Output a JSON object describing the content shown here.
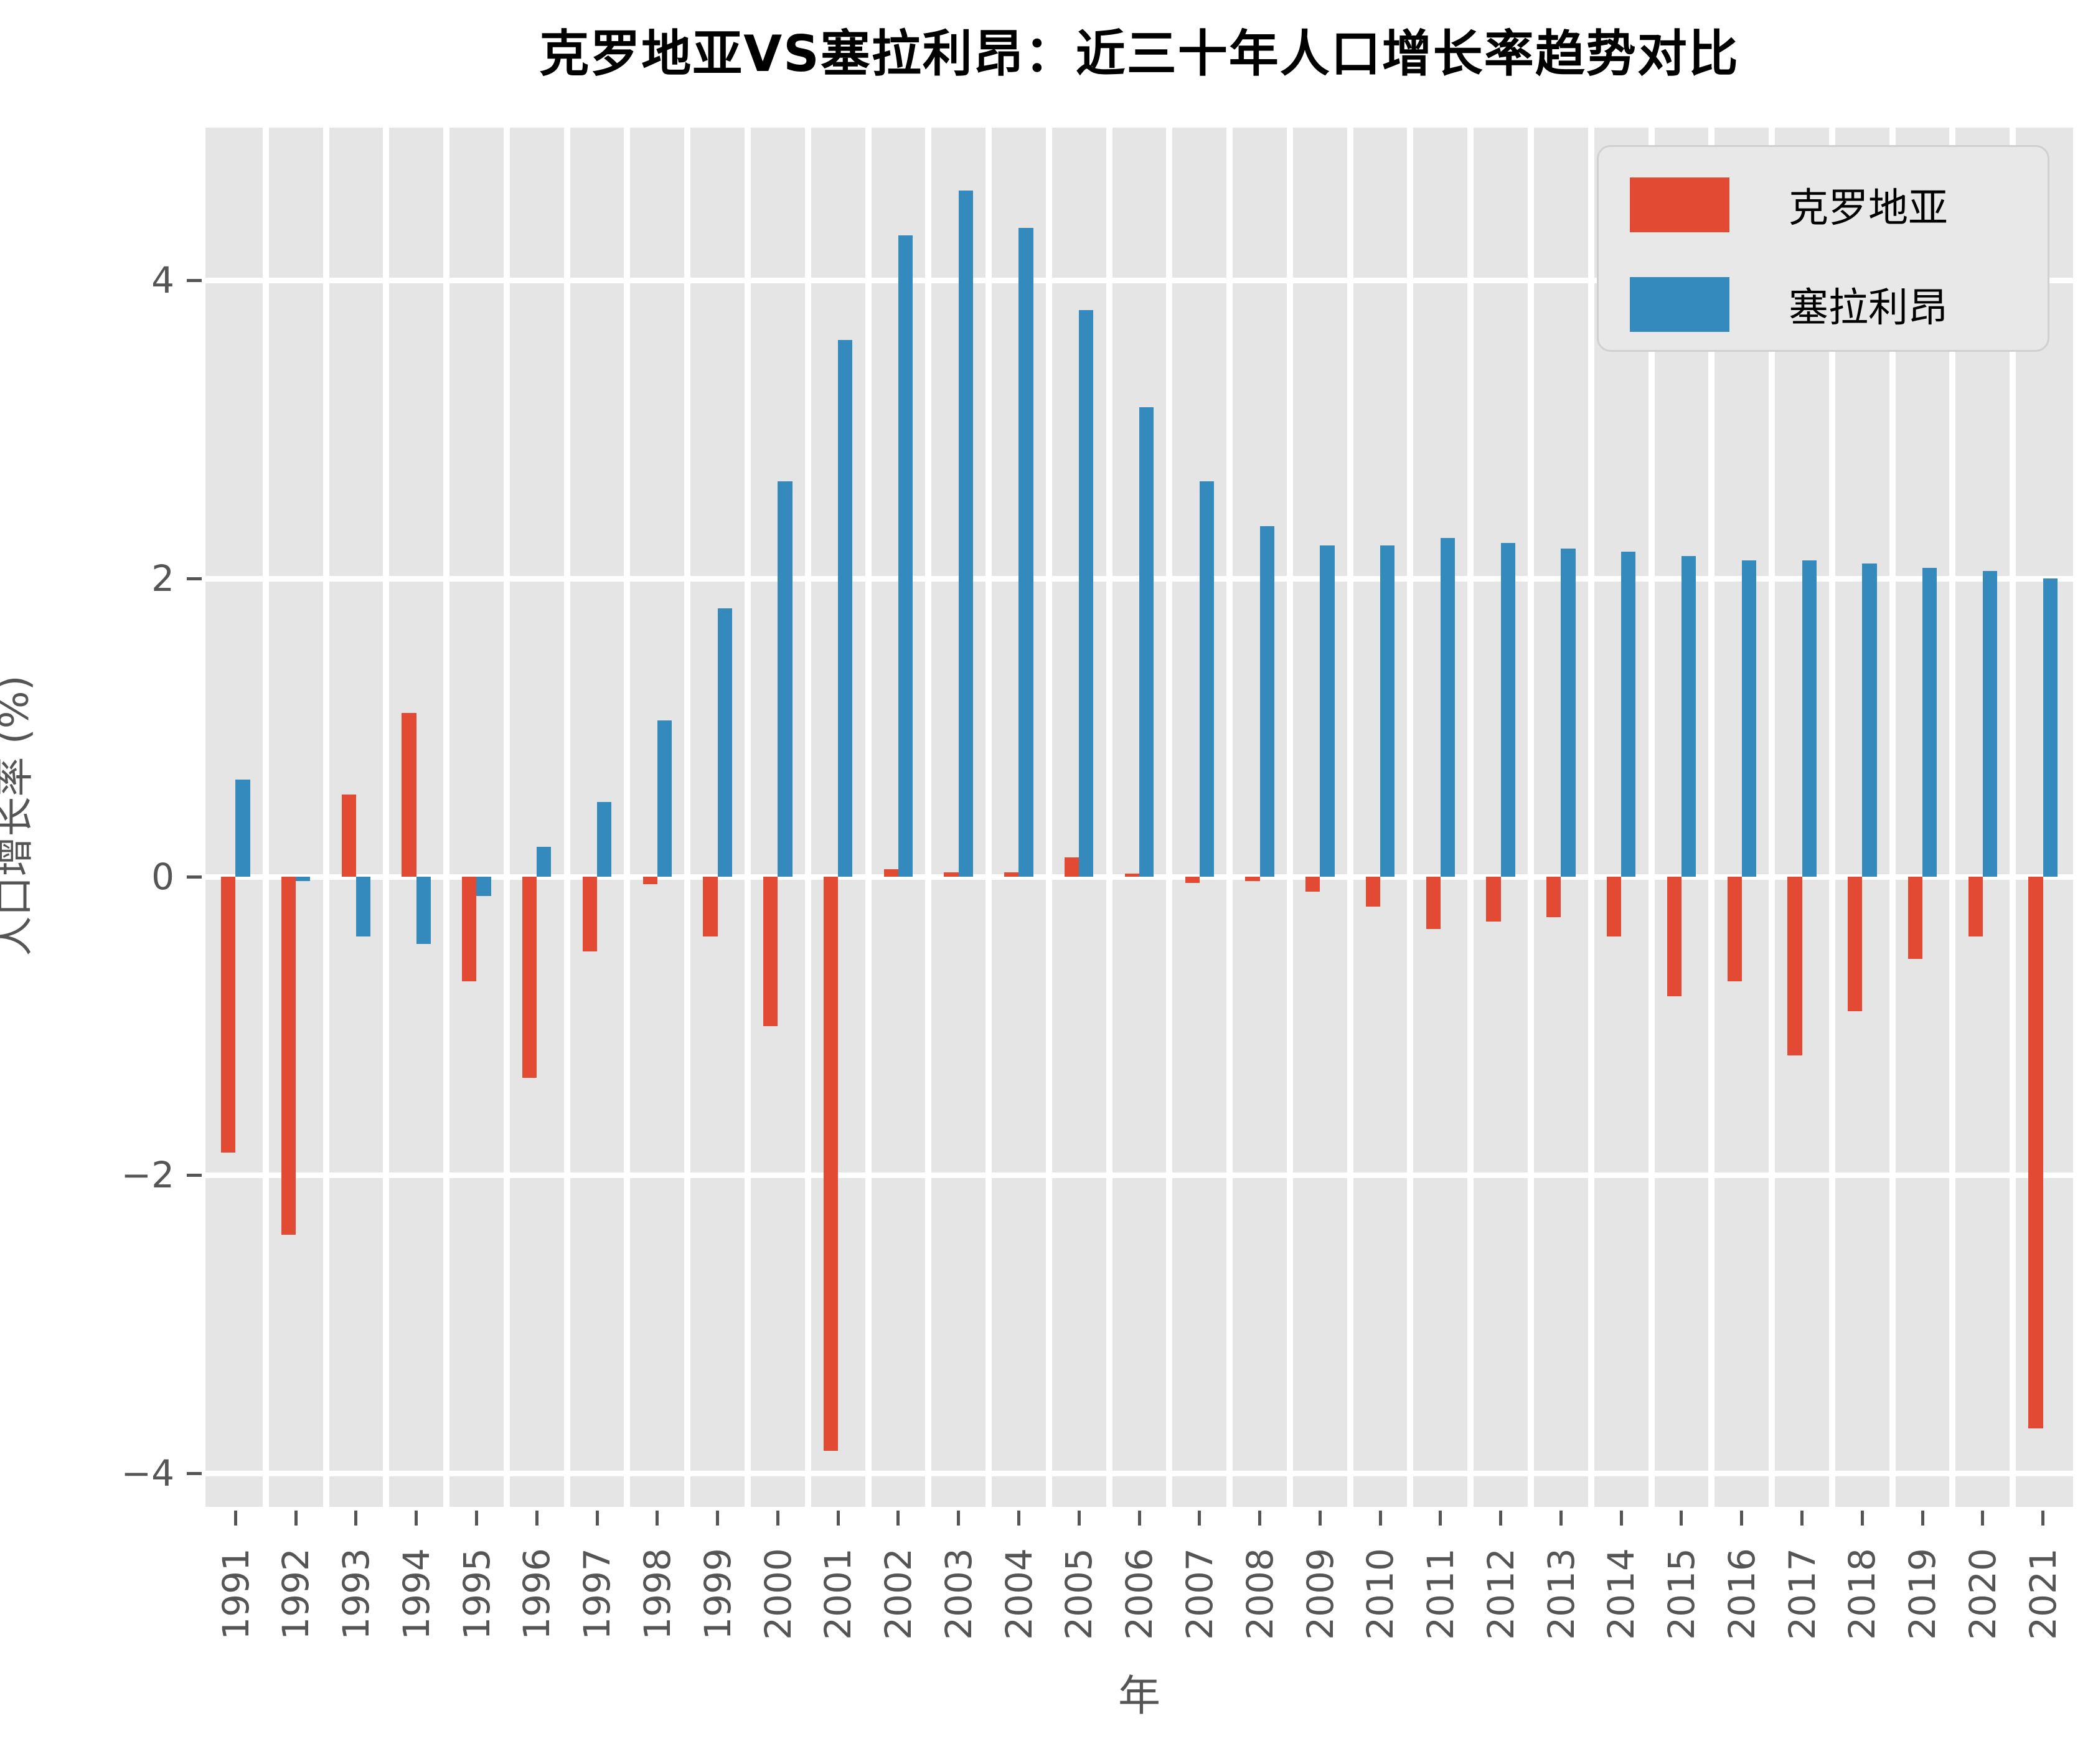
{
  "title": "克罗地亚VS塞拉利昂：近三十年人口增长率趋势对比",
  "chart_data": {
    "type": "bar",
    "categories": [
      1991,
      1992,
      1993,
      1994,
      1995,
      1996,
      1997,
      1998,
      1999,
      2000,
      2001,
      2002,
      2003,
      2004,
      2005,
      2006,
      2007,
      2008,
      2009,
      2010,
      2011,
      2012,
      2013,
      2014,
      2015,
      2016,
      2017,
      2018,
      2019,
      2020,
      2021
    ],
    "series": [
      {
        "name": "克罗地亚",
        "color": "#E24A33",
        "values": [
          -1.85,
          -2.4,
          0.55,
          1.1,
          -0.7,
          -1.35,
          -0.5,
          -0.05,
          -0.4,
          -1.0,
          -3.85,
          0.05,
          0.03,
          0.03,
          0.13,
          0.02,
          -0.04,
          -0.03,
          -0.1,
          -0.2,
          -0.35,
          -0.3,
          -0.27,
          -0.4,
          -0.8,
          -0.7,
          -1.2,
          -0.9,
          -0.55,
          -0.4,
          -3.7
        ]
      },
      {
        "name": "塞拉利昂",
        "color": "#348ABD",
        "values": [
          0.65,
          -0.03,
          -0.4,
          -0.45,
          -0.13,
          0.2,
          0.5,
          1.05,
          1.8,
          2.65,
          3.6,
          4.3,
          4.6,
          4.35,
          3.8,
          3.15,
          2.65,
          2.35,
          2.22,
          2.22,
          2.27,
          2.24,
          2.2,
          2.18,
          2.15,
          2.12,
          2.12,
          2.1,
          2.07,
          2.05,
          2.0
        ]
      }
    ],
    "title": "克罗地亚VS塞拉利昂：近三十年人口增长率趋势对比",
    "xlabel": "年",
    "ylabel": "人口增长率 (%)",
    "yticks": [
      4,
      2,
      0,
      -2,
      -4
    ],
    "ytick_labels": [
      "4",
      "2",
      "0",
      "−2",
      "−4"
    ],
    "ylim": [
      -4.22,
      5.02
    ],
    "grid": true,
    "grid_color": "#FFFFFF",
    "plot_bg": "#E5E5E5",
    "legend_position": "upper right"
  },
  "legend": {
    "items": [
      {
        "label": "克罗地亚",
        "color": "#E24A33"
      },
      {
        "label": "塞拉利昂",
        "color": "#348ABD"
      }
    ]
  }
}
